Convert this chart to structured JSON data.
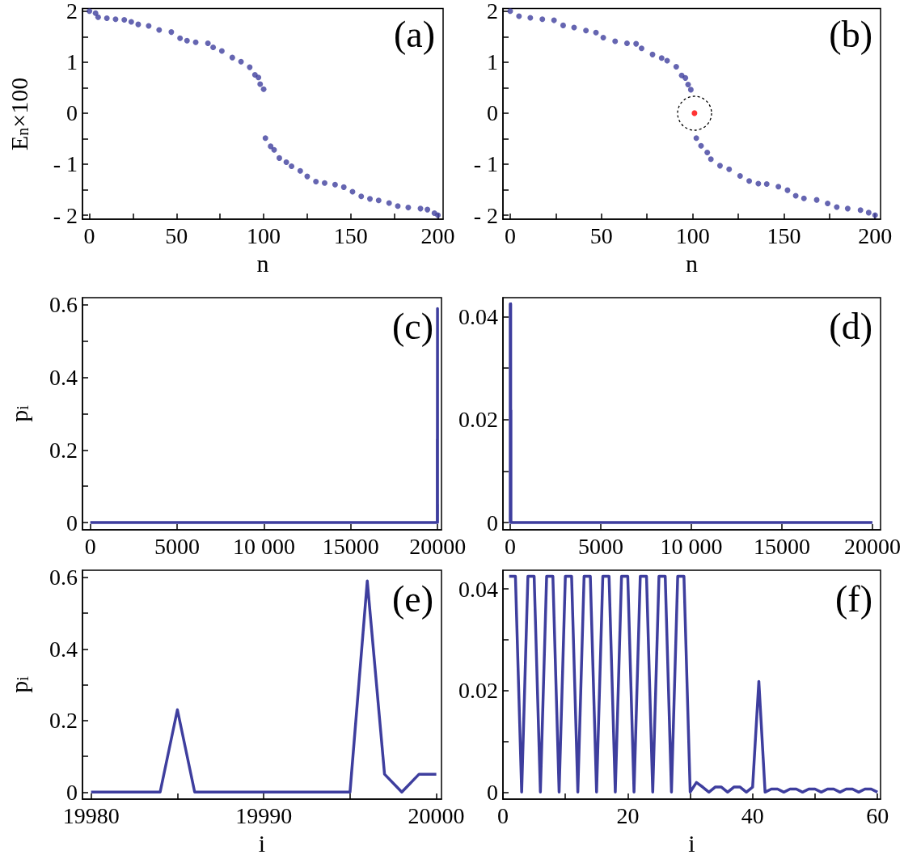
{
  "chart_data": [
    {
      "type": "scatter",
      "ylabel": "E$_{n}$×100",
      "xlabel": "n",
      "annotations": [
        "(a)"
      ],
      "marker": "circle",
      "grid": false,
      "xlim": [
        -4,
        203
      ],
      "ylim": [
        -2.08,
        2.05
      ],
      "xticks": [
        0,
        {
          "value": 25,
          "label": null
        },
        50,
        {
          "value": 75,
          "label": null
        },
        100,
        {
          "value": 125,
          "label": null
        },
        150,
        {
          "value": 175,
          "label": null
        },
        200
      ],
      "yticks": [
        {
          "value": -2,
          "label": "- 2"
        },
        {
          "value": -1.5,
          "label": null
        },
        {
          "value": -1,
          "label": "- 1"
        },
        {
          "value": -0.5,
          "label": null
        },
        0,
        {
          "value": 0.5,
          "label": null
        },
        1,
        {
          "value": 1.5,
          "label": null
        },
        2
      ],
      "series": [
        {
          "color": "#3e3e9e",
          "x": [
            0,
            3.5,
            5,
            10,
            15,
            20,
            24,
            28,
            34,
            40,
            47,
            52,
            56,
            61,
            68,
            71,
            76,
            82,
            87,
            92,
            95,
            97,
            98,
            100,
            101,
            104,
            106,
            109,
            113,
            116,
            121,
            125,
            130,
            135,
            141,
            146,
            151,
            156,
            161,
            166,
            172,
            177,
            183,
            190,
            194,
            198,
            200
          ],
          "values": [
            2.0,
            1.96,
            1.88,
            1.86,
            1.84,
            1.83,
            1.79,
            1.74,
            1.71,
            1.63,
            1.59,
            1.47,
            1.42,
            1.39,
            1.37,
            1.29,
            1.22,
            1.09,
            1.01,
            0.9,
            0.75,
            0.7,
            0.57,
            0.47,
            -0.49,
            -0.65,
            -0.72,
            -0.88,
            -0.96,
            -1.04,
            -1.13,
            -1.24,
            -1.34,
            -1.37,
            -1.4,
            -1.45,
            -1.54,
            -1.63,
            -1.68,
            -1.71,
            -1.76,
            -1.82,
            -1.85,
            -1.87,
            -1.89,
            -1.96,
            -2.0
          ]
        }
      ]
    },
    {
      "type": "scatter",
      "xlabel": "n",
      "annotations": [
        "(b)"
      ],
      "marker": "circle",
      "grid": false,
      "xlim": [
        -4,
        203
      ],
      "ylim": [
        -2.08,
        2.05
      ],
      "xticks": [
        0,
        {
          "value": 25,
          "label": null
        },
        50,
        {
          "value": 75,
          "label": null
        },
        100,
        {
          "value": 125,
          "label": null
        },
        150,
        {
          "value": 175,
          "label": null
        },
        200
      ],
      "yticks": [
        {
          "value": -2,
          "label": "- 2"
        },
        {
          "value": -1.5,
          "label": null
        },
        {
          "value": -1,
          "label": "- 1"
        },
        {
          "value": -0.5,
          "label": null
        },
        0,
        {
          "value": 0.5,
          "label": null
        },
        1,
        {
          "value": 1.5,
          "label": null
        },
        2
      ],
      "series": [
        {
          "color": "#3e3e9e",
          "x": [
            0,
            4.8,
            11,
            17.6,
            24,
            29,
            35,
            41.5,
            47,
            51,
            57.5,
            64,
            69,
            72,
            78,
            83,
            86,
            91,
            94,
            96,
            97.5,
            99,
            102,
            104.6,
            108,
            110,
            115,
            120,
            126,
            131,
            136,
            140.6,
            147,
            152,
            156.5,
            161,
            168,
            174,
            179,
            185,
            192,
            196.5,
            200
          ],
          "values": [
            2.0,
            1.9,
            1.87,
            1.84,
            1.82,
            1.72,
            1.68,
            1.62,
            1.58,
            1.48,
            1.41,
            1.37,
            1.36,
            1.27,
            1.15,
            1.08,
            1.03,
            0.91,
            0.74,
            0.69,
            0.56,
            0.46,
            -0.49,
            -0.64,
            -0.77,
            -0.9,
            -1.03,
            -1.1,
            -1.23,
            -1.33,
            -1.38,
            -1.39,
            -1.44,
            -1.51,
            -1.62,
            -1.67,
            -1.7,
            -1.77,
            -1.84,
            -1.87,
            -1.9,
            -1.95,
            -2.0
          ]
        },
        {
          "color": "#ff0000",
          "x": [
            101
          ],
          "values": [
            0
          ]
        }
      ]
    },
    {
      "type": "line",
      "ylabel": "p$_{i}$",
      "annotations": [
        "(c)"
      ],
      "line_style": "solid",
      "grid": false,
      "xlim": [
        -450,
        20225
      ],
      "ylim": [
        -0.02,
        0.62
      ],
      "xticks": [
        0,
        5000,
        {
          "value": 10000,
          "label": "10 000"
        },
        15000,
        20000
      ],
      "yticks": [
        0,
        {
          "value": 0.1,
          "label": null
        },
        0.2,
        {
          "value": 0.3,
          "label": null
        },
        0.4,
        {
          "value": 0.5,
          "label": null
        },
        0.6
      ],
      "series": [
        {
          "color": "#3e3e9e",
          "x": [
            1,
            19984,
            19985,
            19986,
            19995,
            19996,
            19997,
            19998,
            19999,
            20000
          ],
          "values": [
            0,
            0,
            0.23,
            0,
            0,
            0.59,
            0.05,
            0,
            0.05,
            0.05
          ]
        }
      ]
    },
    {
      "type": "line",
      "annotations": [
        "(d)"
      ],
      "line_style": "solid",
      "grid": false,
      "xlim": [
        -400,
        20450
      ],
      "ylim": [
        -0.0014,
        0.0437
      ],
      "xticks": [
        0,
        5000,
        {
          "value": 10000,
          "label": "10 000"
        },
        15000,
        20000
      ],
      "yticks": [
        0,
        {
          "value": 0.01,
          "label": null
        },
        0.02,
        {
          "value": 0.03,
          "label": null
        },
        0.04
      ],
      "series": [
        {
          "color": "#3e3e9e",
          "x": [
            1,
            2,
            3,
            4,
            5,
            6,
            7,
            8,
            9,
            10,
            11,
            12,
            13,
            14,
            15,
            16,
            17,
            18,
            19,
            20,
            21,
            22,
            23,
            24,
            25,
            26,
            27,
            28,
            29,
            30,
            31,
            40,
            41,
            42,
            60,
            20000
          ],
          "values": [
            0.0425,
            0.0425,
            0,
            0.0425,
            0.0425,
            0,
            0.0425,
            0.0425,
            0,
            0.0425,
            0.0425,
            0,
            0.0425,
            0.0425,
            0,
            0.0425,
            0.0425,
            0,
            0.0425,
            0.0425,
            0,
            0.0425,
            0.0425,
            0,
            0.0425,
            0.0425,
            0,
            0.0425,
            0.0425,
            0,
            0.0012,
            0.001,
            0.0218,
            0,
            0,
            0
          ]
        }
      ]
    },
    {
      "type": "line",
      "ylabel": "p$_{i}$",
      "xlabel": "i",
      "annotations": [
        "(e)"
      ],
      "line_style": "solid",
      "grid": false,
      "xlim": [
        19979.5,
        20000.3
      ],
      "ylim": [
        -0.02,
        0.62
      ],
      "xticks": [
        19980,
        {
          "value": 19985,
          "label": null
        },
        19990,
        {
          "value": 19995,
          "label": null
        },
        20000
      ],
      "yticks": [
        0,
        {
          "value": 0.1,
          "label": null
        },
        0.2,
        {
          "value": 0.3,
          "label": null
        },
        0.4,
        {
          "value": 0.5,
          "label": null
        },
        0.6
      ],
      "series": [
        {
          "color": "#3e3e9e",
          "x": [
            19980,
            19981,
            19982,
            19983,
            19984,
            19985,
            19986,
            19987,
            19988,
            19989,
            19990,
            19991,
            19992,
            19993,
            19994,
            19995,
            19996,
            19997,
            19998,
            19999,
            20000
          ],
          "values": [
            0,
            0,
            0,
            0,
            0,
            0.23,
            0,
            0,
            0,
            0,
            0,
            0,
            0,
            0,
            0,
            0,
            0.59,
            0.05,
            0,
            0.05,
            0.05
          ]
        }
      ]
    },
    {
      "type": "line",
      "xlabel": "i",
      "annotations": [
        "(f)"
      ],
      "line_style": "solid",
      "grid": false,
      "xlim": [
        0,
        60.5
      ],
      "ylim": [
        -0.0014,
        0.0437
      ],
      "xticks": [
        0,
        {
          "value": 10,
          "label": null
        },
        20,
        {
          "value": 30,
          "label": null
        },
        40,
        {
          "value": 50,
          "label": null
        },
        60
      ],
      "yticks": [
        0,
        {
          "value": 0.01,
          "label": null
        },
        0.02,
        {
          "value": 0.03,
          "label": null
        },
        0.04
      ],
      "series": [
        {
          "color": "#3e3e9e",
          "x": [
            1,
            2,
            3,
            4,
            5,
            6,
            7,
            8,
            9,
            10,
            11,
            12,
            13,
            14,
            15,
            16,
            17,
            18,
            19,
            20,
            21,
            22,
            23,
            24,
            25,
            26,
            27,
            28,
            29,
            30,
            31,
            32,
            33,
            34,
            35,
            36,
            37,
            38,
            39,
            40,
            41,
            42,
            43,
            44,
            45,
            46,
            47,
            48,
            49,
            50,
            51,
            52,
            53,
            54,
            55,
            56,
            57,
            58,
            59,
            60
          ],
          "values": [
            0.0425,
            0.0425,
            0,
            0.0425,
            0.0425,
            0,
            0.0425,
            0.0425,
            0,
            0.0425,
            0.0425,
            0,
            0.0425,
            0.0425,
            0,
            0.0425,
            0.0425,
            0,
            0.0425,
            0.0425,
            0,
            0.0425,
            0.0425,
            0,
            0.0425,
            0.0425,
            0,
            0.0425,
            0.0425,
            0,
            0.0019,
            0.001,
            0,
            0.001,
            0.001,
            0,
            0.001,
            0.001,
            0,
            0.001,
            0.0218,
            0,
            0.0006,
            0.0006,
            0,
            0.0006,
            0.0006,
            0,
            0.0006,
            0.0006,
            0,
            0.0006,
            0.0006,
            0,
            0.0006,
            0.0006,
            0,
            0.0006,
            0.0006,
            0
          ]
        }
      ]
    }
  ]
}
